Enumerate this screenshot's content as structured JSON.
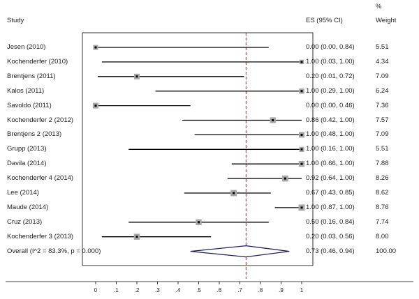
{
  "header": {
    "study_label": "Study",
    "es_label": "ES (95% CI)",
    "weight_pct": "%",
    "weight_label": "Weight"
  },
  "chart_data": {
    "type": "forest",
    "reference_line": 0.73,
    "xlim": [
      0,
      1
    ],
    "xticks": [
      "0",
      ".1",
      ".2",
      ".3",
      ".4",
      ".5",
      ".6",
      ".7",
      ".8",
      ".9",
      "1"
    ],
    "studies": [
      {
        "label": "Jesen (2010)",
        "es": 0.0,
        "lo": 0.0,
        "hi": 0.84,
        "es_text": "0.00 (0.00, 0.84)",
        "weight": "5.51"
      },
      {
        "label": "Kochenderfer (2010)",
        "es": 1.0,
        "lo": 0.03,
        "hi": 1.0,
        "es_text": "1.00 (0.03, 1.00)",
        "weight": "4.34"
      },
      {
        "label": "Brentjens (2011)",
        "es": 0.2,
        "lo": 0.01,
        "hi": 0.72,
        "es_text": "0.20 (0.01, 0.72)",
        "weight": "7.09"
      },
      {
        "label": "Kalos (2011)",
        "es": 1.0,
        "lo": 0.29,
        "hi": 1.0,
        "es_text": "1.00 (0.29, 1.00)",
        "weight": "6.24"
      },
      {
        "label": "Savoldo (2011)",
        "es": 0.0,
        "lo": 0.0,
        "hi": 0.46,
        "es_text": "0.00 (0.00, 0.46)",
        "weight": "7.36"
      },
      {
        "label": "Kochenderfer 2 (2012)",
        "es": 0.86,
        "lo": 0.42,
        "hi": 1.0,
        "es_text": "0.86 (0.42, 1.00)",
        "weight": "7.57"
      },
      {
        "label": "Brentjens 2 (2013)",
        "es": 1.0,
        "lo": 0.48,
        "hi": 1.0,
        "es_text": "1.00 (0.48, 1.00)",
        "weight": "7.09"
      },
      {
        "label": "Grupp (2013)",
        "es": 1.0,
        "lo": 0.16,
        "hi": 1.0,
        "es_text": "1.00 (0.16, 1.00)",
        "weight": "5.51"
      },
      {
        "label": "Davila (2014)",
        "es": 1.0,
        "lo": 0.66,
        "hi": 1.0,
        "es_text": "1.00 (0.66, 1.00)",
        "weight": "7.88"
      },
      {
        "label": "Kochenderfer 4 (2014)",
        "es": 0.92,
        "lo": 0.64,
        "hi": 1.0,
        "es_text": "0.92 (0.64, 1.00)",
        "weight": "8.26"
      },
      {
        "label": "Lee (2014)",
        "es": 0.67,
        "lo": 0.43,
        "hi": 0.85,
        "es_text": "0.67 (0.43, 0.85)",
        "weight": "8.62"
      },
      {
        "label": "Maude (2014)",
        "es": 1.0,
        "lo": 0.87,
        "hi": 1.0,
        "es_text": "1.00 (0.87, 1.00)",
        "weight": "8.76"
      },
      {
        "label": "Cruz (2013)",
        "es": 0.5,
        "lo": 0.16,
        "hi": 0.84,
        "es_text": "0.50 (0.16, 0.84)",
        "weight": "7.74"
      },
      {
        "label": "Kochenderfer 3 (2013)",
        "es": 0.2,
        "lo": 0.03,
        "hi": 0.56,
        "es_text": "0.20 (0.03, 0.56)",
        "weight": "8.00"
      }
    ],
    "overall": {
      "label": "Overall  (I^2 = 83.3%, p = 0.000)",
      "es": 0.73,
      "lo": 0.46,
      "hi": 0.94,
      "es_text": "0.73 (0.46, 0.94)",
      "weight": "100.00"
    },
    "colors": {
      "lines": "#000000",
      "box": "#a8a8a8",
      "ref_line": "#b22222",
      "diamond": "#1b1f6b"
    }
  }
}
